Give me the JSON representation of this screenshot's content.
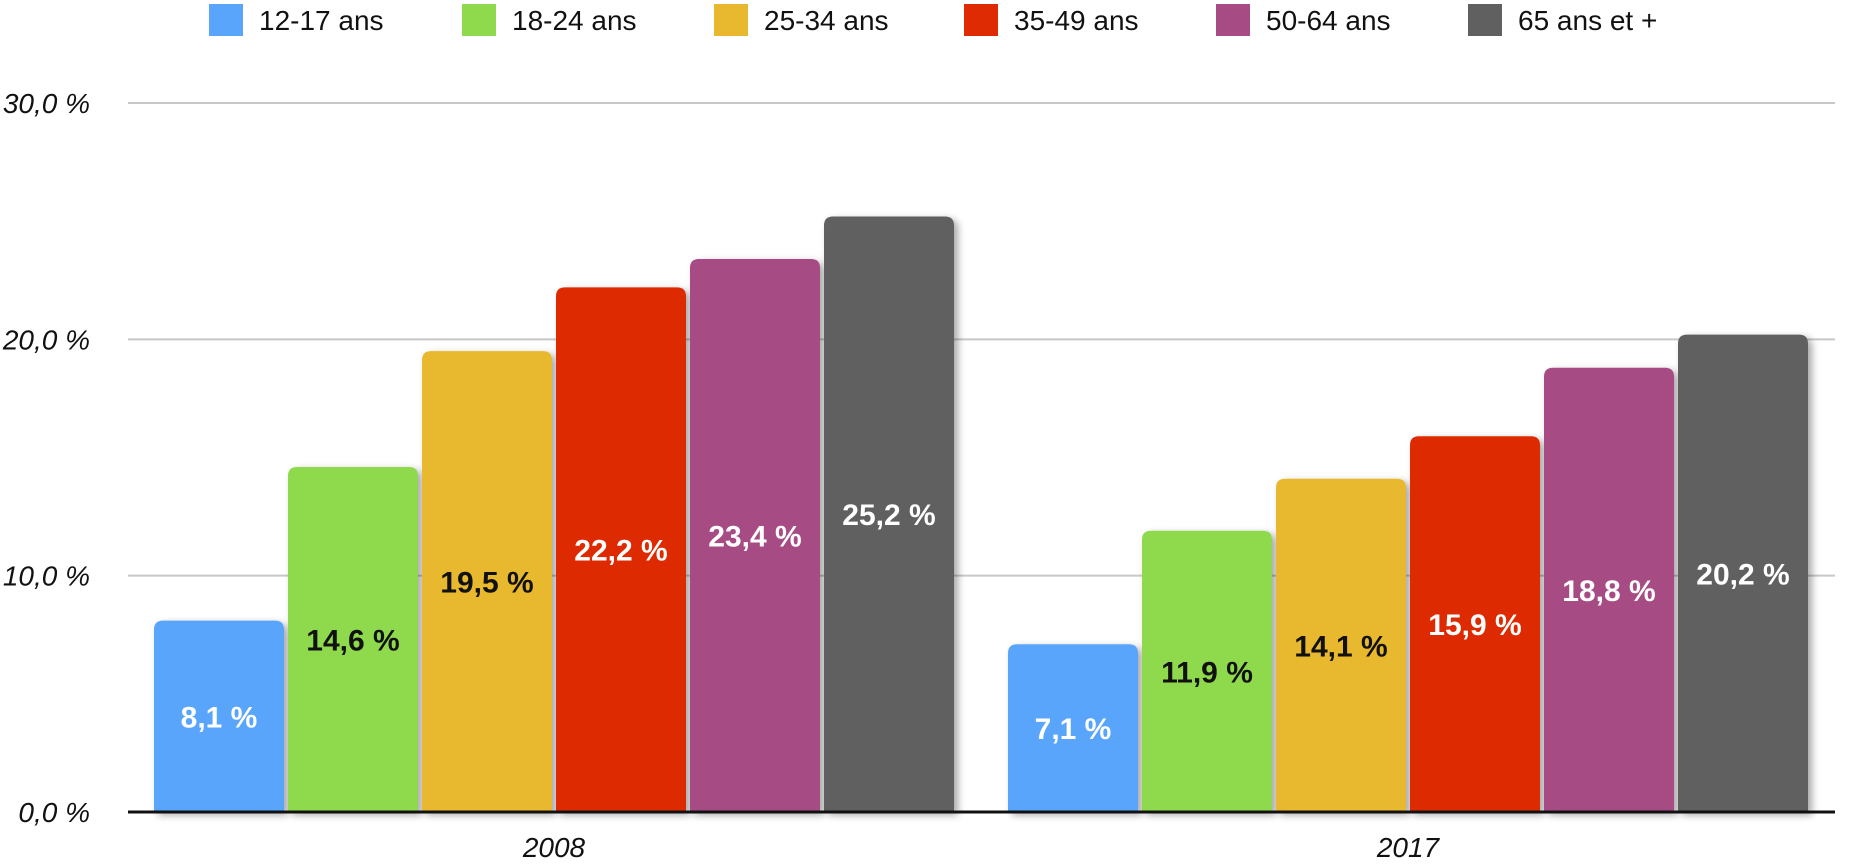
{
  "chart_data": {
    "type": "bar",
    "categories": [
      "2008",
      "2017"
    ],
    "series": [
      {
        "name": "12-17 ans",
        "color": "#58a5fb",
        "label_color": "#ffffff",
        "values": [
          8.1,
          7.1
        ],
        "labels": [
          "8,1 %",
          "7,1 %"
        ]
      },
      {
        "name": "18-24 ans",
        "color": "#8fd94d",
        "label_color": "#111111",
        "values": [
          14.6,
          11.9
        ],
        "labels": [
          "14,6 %",
          "11,9 %"
        ]
      },
      {
        "name": "25-34 ans",
        "color": "#e8b82f",
        "label_color": "#111111",
        "values": [
          19.5,
          14.1
        ],
        "labels": [
          "19,5 %",
          "14,1 %"
        ]
      },
      {
        "name": "35-49 ans",
        "color": "#de2b03",
        "label_color": "#ffffff",
        "values": [
          22.2,
          15.9
        ],
        "labels": [
          "22,2 %",
          "15,9 %"
        ]
      },
      {
        "name": "50-64 ans",
        "color": "#a64b84",
        "label_color": "#ffffff",
        "values": [
          23.4,
          18.8
        ],
        "labels": [
          "23,4 %",
          "18,8 %"
        ]
      },
      {
        "name": "65 ans et +",
        "color": "#606060",
        "label_color": "#ffffff",
        "values": [
          25.2,
          20.2
        ],
        "labels": [
          "25,2 %",
          "20,2 %"
        ]
      }
    ],
    "y_ticks": [
      {
        "value": 0,
        "label": "0,0 %"
      },
      {
        "value": 10,
        "label": "10,0 %"
      },
      {
        "value": 20,
        "label": "20,0 %"
      },
      {
        "value": 30,
        "label": "30,0 %"
      }
    ],
    "ylim": [
      0,
      30
    ],
    "grid": true,
    "legend_position": "top",
    "colors": {
      "gridline": "#c8c8c8",
      "baseline": "#111111"
    }
  }
}
